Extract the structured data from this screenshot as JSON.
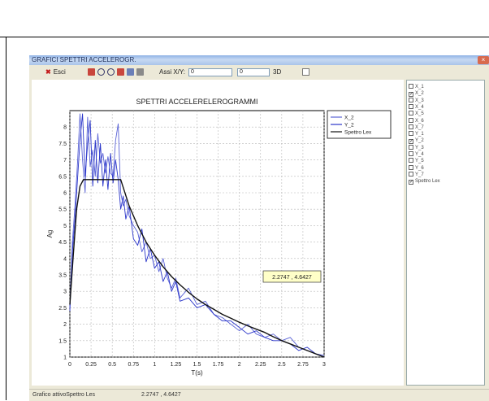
{
  "window": {
    "title": "GRAFICI SPETTRI ACCELEROGR.",
    "close_glyph": "×"
  },
  "toolbar": {
    "exit_label": "Esci",
    "exit_icon": "close-x-icon",
    "icons": [
      "zoom-window-icon",
      "zoom-in-icon",
      "zoom-out-icon",
      "zoom-extents-icon",
      "copy-icon",
      "print-icon"
    ],
    "axis_label": "Assi X/Y:",
    "axis_x_value": "0",
    "axis_y_value": "0",
    "label_3d": "3D"
  },
  "legend_list": [
    {
      "label": "X_1",
      "checked": false
    },
    {
      "label": "X_2",
      "checked": true
    },
    {
      "label": "X_3",
      "checked": false
    },
    {
      "label": "X_4",
      "checked": false
    },
    {
      "label": "X_5",
      "checked": false
    },
    {
      "label": "X_6",
      "checked": false
    },
    {
      "label": "X_7",
      "checked": false
    },
    {
      "label": "Y_1",
      "checked": false
    },
    {
      "label": "Y_2",
      "checked": true
    },
    {
      "label": "Y_3",
      "checked": false
    },
    {
      "label": "Y_4",
      "checked": false
    },
    {
      "label": "Y_5",
      "checked": false
    },
    {
      "label": "Y_6",
      "checked": false
    },
    {
      "label": "Y_7",
      "checked": false
    },
    {
      "label": "Spettro Lex",
      "checked": true
    }
  ],
  "status": {
    "active_label": "Grafico attivoSpettro Les",
    "coord": "2.2747 , 4.6427"
  },
  "chart_data": {
    "type": "line",
    "title": "SPETTRI ACCELERELEROGRAMMI",
    "xlabel": "T(s)",
    "ylabel": "Ag",
    "xlim": [
      0,
      3
    ],
    "ylim": [
      1,
      8.5
    ],
    "x_ticks": [
      "0",
      "0.25",
      "0.5",
      "0.75",
      "1",
      "1.25",
      "1.5",
      "1.75",
      "2",
      "2.25",
      "2.5",
      "2.75",
      "3"
    ],
    "y_ticks": [
      "1",
      "1.5",
      "2",
      "2.5",
      "3",
      "3.5",
      "4",
      "4.5",
      "5",
      "5.5",
      "6",
      "6.5",
      "7",
      "7.5",
      "8"
    ],
    "grid": true,
    "legend_position": "top-right",
    "tooltip": "2.2747 , 4.6427",
    "series": [
      {
        "name": "X_2",
        "color": "#5a63d6",
        "x": [
          0,
          0.03,
          0.06,
          0.09,
          0.12,
          0.15,
          0.18,
          0.21,
          0.24,
          0.27,
          0.3,
          0.33,
          0.36,
          0.39,
          0.42,
          0.45,
          0.48,
          0.51,
          0.54,
          0.57,
          0.6,
          0.63,
          0.66,
          0.7,
          0.75,
          0.8,
          0.85,
          0.9,
          0.95,
          1.0,
          1.05,
          1.1,
          1.15,
          1.2,
          1.25,
          1.3,
          1.4,
          1.5,
          1.6,
          1.7,
          1.8,
          1.9,
          2.0,
          2.1,
          2.2,
          2.3,
          2.4,
          2.5,
          2.6,
          2.7,
          2.8,
          2.9,
          3.0
        ],
        "y": [
          2.5,
          4.5,
          5.6,
          6.9,
          8.4,
          7.0,
          6.0,
          8.3,
          6.8,
          7.3,
          6.5,
          7.8,
          6.9,
          7.2,
          6.6,
          7.1,
          6.6,
          6.5,
          7.6,
          8.1,
          6.0,
          5.6,
          5.8,
          5.3,
          5.0,
          4.8,
          4.2,
          4.5,
          4.0,
          4.1,
          3.6,
          4.0,
          3.4,
          3.1,
          3.4,
          2.8,
          3.1,
          2.6,
          2.7,
          2.3,
          2.2,
          2.0,
          1.8,
          2.0,
          1.7,
          1.6,
          1.7,
          1.5,
          1.6,
          1.3,
          1.2,
          1.1,
          1.05
        ]
      },
      {
        "name": "Y_2",
        "color": "#2a35c9",
        "x": [
          0,
          0.03,
          0.06,
          0.09,
          0.12,
          0.15,
          0.18,
          0.21,
          0.24,
          0.27,
          0.3,
          0.33,
          0.36,
          0.39,
          0.42,
          0.45,
          0.48,
          0.51,
          0.54,
          0.57,
          0.6,
          0.63,
          0.66,
          0.7,
          0.75,
          0.8,
          0.85,
          0.9,
          0.95,
          1.0,
          1.05,
          1.1,
          1.15,
          1.2,
          1.25,
          1.3,
          1.4,
          1.5,
          1.6,
          1.7,
          1.8,
          1.9,
          2.0,
          2.1,
          2.2,
          2.3,
          2.4,
          2.5,
          2.6,
          2.7,
          2.8,
          2.9,
          3.0
        ],
        "y": [
          2.4,
          4.2,
          5.2,
          6.4,
          7.6,
          8.4,
          6.5,
          7.5,
          8.2,
          6.2,
          7.6,
          6.3,
          7.5,
          6.2,
          7.0,
          6.1,
          7.2,
          6.3,
          7.0,
          6.4,
          5.5,
          5.9,
          5.2,
          5.6,
          4.6,
          4.4,
          4.9,
          3.9,
          4.3,
          3.7,
          3.9,
          3.3,
          3.6,
          3.0,
          3.3,
          2.7,
          2.8,
          2.5,
          2.6,
          2.3,
          2.1,
          2.1,
          1.9,
          1.7,
          1.8,
          1.6,
          1.5,
          1.5,
          1.4,
          1.2,
          1.3,
          1.1,
          1.0
        ]
      },
      {
        "name": "Spettro Lex",
        "color": "#111111",
        "x": [
          0,
          0.04,
          0.08,
          0.12,
          0.16,
          0.6,
          0.7,
          0.8,
          0.9,
          1.0,
          1.1,
          1.2,
          1.3,
          1.4,
          1.5,
          1.6,
          1.7,
          1.8,
          1.9,
          2.0,
          2.1,
          2.2,
          2.3,
          2.4,
          2.5,
          2.6,
          2.7,
          2.8,
          2.9,
          3.0
        ],
        "y": [
          2.6,
          4.1,
          5.5,
          6.2,
          6.4,
          6.4,
          5.6,
          5.0,
          4.5,
          4.1,
          3.75,
          3.45,
          3.2,
          2.97,
          2.77,
          2.6,
          2.45,
          2.3,
          2.18,
          2.06,
          1.95,
          1.85,
          1.75,
          1.62,
          1.5,
          1.4,
          1.3,
          1.2,
          1.1,
          1.0
        ]
      }
    ]
  }
}
